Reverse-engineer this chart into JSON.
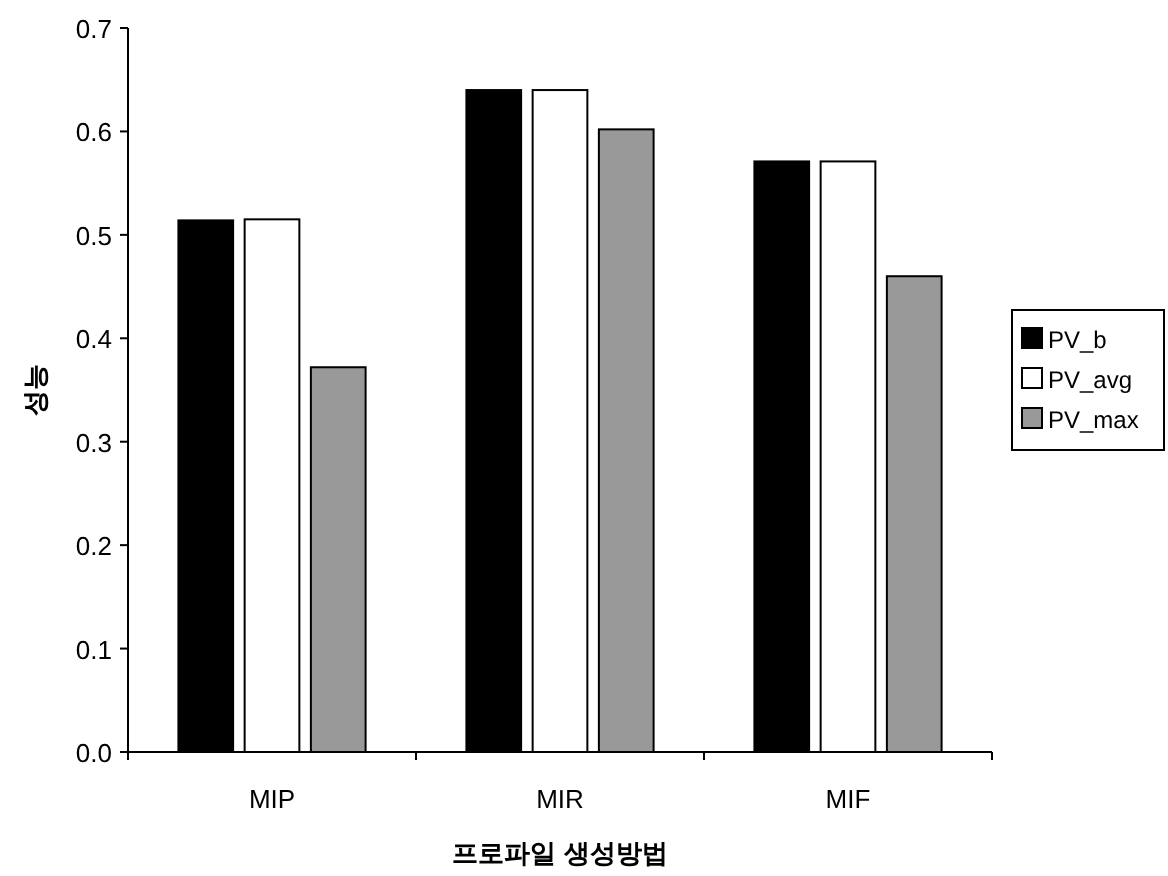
{
  "chart_data": {
    "type": "bar",
    "xlabel": "프로파일 생성방법",
    "ylabel": "성능",
    "categories": [
      "MIP",
      "MIR",
      "MIF"
    ],
    "series": [
      {
        "name": "PV_b",
        "color": "#000000",
        "values": [
          0.514,
          0.64,
          0.571
        ]
      },
      {
        "name": "PV_avg",
        "color": "#ffffff",
        "values": [
          0.515,
          0.64,
          0.571
        ]
      },
      {
        "name": "PV_max",
        "color": "#999999",
        "values": [
          0.372,
          0.602,
          0.46
        ]
      }
    ],
    "ylim": [
      0,
      0.7
    ],
    "yticks": [
      {
        "value": 0,
        "label": "0.0"
      },
      0.1,
      0.2,
      0.3,
      0.4,
      0.5,
      0.6,
      0.7
    ],
    "grid": false,
    "legend": "right"
  }
}
